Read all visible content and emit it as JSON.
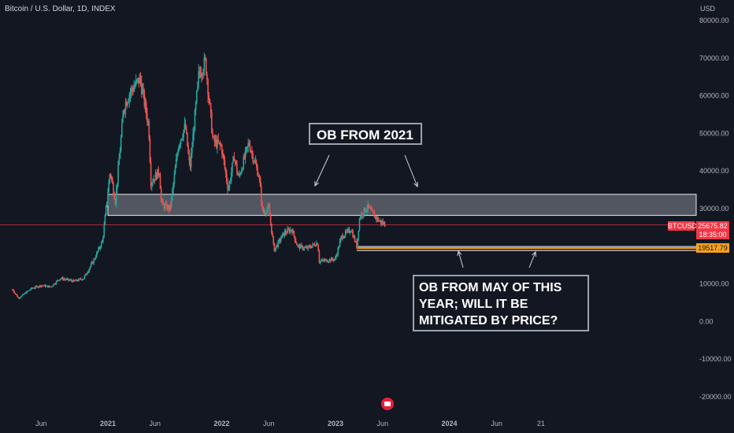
{
  "header": {
    "title": "Bitcoin / U.S. Dollar, 1D, INDEX",
    "currency": "USD"
  },
  "price_tags": {
    "symbol": "BTCUSD",
    "last_price": "25675.82",
    "countdown": "18:35:00",
    "ob_level": "19517.79"
  },
  "annotations": {
    "note1": "OB FROM 2021",
    "note2": "OB FROM MAY OF THIS\nYEAR; WILL IT BE\nMITIGATED BY PRICE?"
  },
  "colors": {
    "background": "#131722",
    "up": "#26a69a",
    "down": "#ef5350",
    "last_price_line": "#f23645",
    "ob_line": "#f7a21b",
    "zone_fill": "#c8ccd6"
  },
  "chart_data": {
    "type": "line",
    "series": [
      {
        "values": [
          [
            "2020-03-01",
            8500
          ],
          [
            "2020-03-20",
            6200
          ],
          [
            "2020-05-01",
            8800
          ],
          [
            "2020-06-01",
            9600
          ],
          [
            "2020-07-01",
            9200
          ],
          [
            "2020-08-01",
            11500
          ],
          [
            "2020-09-15",
            10700
          ],
          [
            "2020-10-15",
            11500
          ],
          [
            "2020-11-15",
            16000
          ],
          [
            "2020-12-15",
            21500
          ],
          [
            "2021-01-08",
            40000
          ],
          [
            "2021-01-25",
            32000
          ],
          [
            "2021-02-21",
            57000
          ],
          [
            "2021-03-13",
            61000
          ],
          [
            "2021-04-14",
            64500
          ],
          [
            "2021-05-12",
            52000
          ],
          [
            "2021-05-19",
            37000
          ],
          [
            "2021-06-15",
            40000
          ],
          [
            "2021-06-22",
            31000
          ],
          [
            "2021-07-20",
            30000
          ],
          [
            "2021-08-15",
            47000
          ],
          [
            "2021-09-06",
            52000
          ],
          [
            "2021-09-21",
            40500
          ],
          [
            "2021-10-20",
            66000
          ],
          [
            "2021-11-10",
            69000
          ],
          [
            "2021-12-04",
            48000
          ],
          [
            "2021-12-31",
            46500
          ],
          [
            "2022-01-22",
            35000
          ],
          [
            "2022-02-10",
            44000
          ],
          [
            "2022-02-24",
            38000
          ],
          [
            "2022-03-29",
            47500
          ],
          [
            "2022-05-01",
            38500
          ],
          [
            "2022-05-12",
            29000
          ],
          [
            "2022-06-01",
            30000
          ],
          [
            "2022-06-18",
            19000
          ],
          [
            "2022-07-20",
            23500
          ],
          [
            "2022-08-14",
            24500
          ],
          [
            "2022-09-01",
            20000
          ],
          [
            "2022-10-01",
            19400
          ],
          [
            "2022-11-05",
            21000
          ],
          [
            "2022-11-10",
            16000
          ],
          [
            "2022-12-31",
            16600
          ],
          [
            "2023-01-20",
            22500
          ],
          [
            "2023-02-20",
            24500
          ],
          [
            "2023-03-10",
            20000
          ],
          [
            "2023-03-20",
            28000
          ],
          [
            "2023-04-14",
            30500
          ],
          [
            "2023-05-01",
            28500
          ],
          [
            "2023-05-20",
            26800
          ],
          [
            "2023-06-10",
            25675
          ]
        ]
      }
    ],
    "x_tick_labels": [
      "Jun",
      "2021",
      "Jun",
      "2022",
      "Jun",
      "2023",
      "Jun",
      "2024",
      "Jun",
      "21"
    ],
    "y_tick_labels": [
      "80000.00",
      "70000.00",
      "60000.00",
      "50000.00",
      "40000.00",
      "30000.00",
      "10000.00",
      "0.00",
      "-10000.00",
      "-20000.00"
    ],
    "ylim": [
      -22000,
      83000
    ],
    "zone": {
      "y_low": 28200,
      "y_high": 33800,
      "x_start": "2021-01-01"
    },
    "ob_level": {
      "y": 19517.79,
      "x_start": "2023-03-10"
    },
    "last_price": 25675.82,
    "grid": false
  }
}
